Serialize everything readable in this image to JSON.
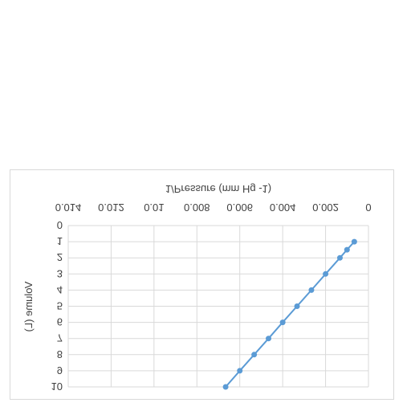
{
  "chart_data": {
    "type": "scatter",
    "title": "",
    "xlabel": "1/Pressure (mm Hg -1)",
    "ylabel": "Volume (L)",
    "xlim": [
      0,
      0.014
    ],
    "ylim": [
      0,
      10
    ],
    "x_ticks": [
      0,
      0.002,
      0.004,
      0.006,
      0.008,
      0.01,
      0.012,
      0.014
    ],
    "x_tick_labels": [
      "0",
      "0.002",
      "0.004",
      "0.006",
      "0.008",
      "0.01",
      "0.012",
      "0.014"
    ],
    "y_ticks": [
      0,
      1,
      2,
      3,
      4,
      5,
      6,
      7,
      8,
      9,
      10
    ],
    "y_tick_labels": [
      "0",
      "1",
      "2",
      "3",
      "4",
      "5",
      "6",
      "7",
      "8",
      "9",
      "10"
    ],
    "x_axis_position": "top",
    "y_axis_reversed": true,
    "grid": true,
    "mirrored_horizontally": true,
    "legend": "none",
    "series": [
      {
        "color": "#5b9bd5",
        "marker": "circle",
        "line": true,
        "points": [
          {
            "x": 0.00066,
            "y": 1
          },
          {
            "x": 0.001,
            "y": 1.5
          },
          {
            "x": 0.00133,
            "y": 2
          },
          {
            "x": 0.002,
            "y": 3
          },
          {
            "x": 0.00266,
            "y": 4
          },
          {
            "x": 0.00333,
            "y": 5
          },
          {
            "x": 0.004,
            "y": 6
          },
          {
            "x": 0.00466,
            "y": 7
          },
          {
            "x": 0.00533,
            "y": 8
          },
          {
            "x": 0.006,
            "y": 9
          },
          {
            "x": 0.00666,
            "y": 10
          }
        ]
      }
    ]
  }
}
